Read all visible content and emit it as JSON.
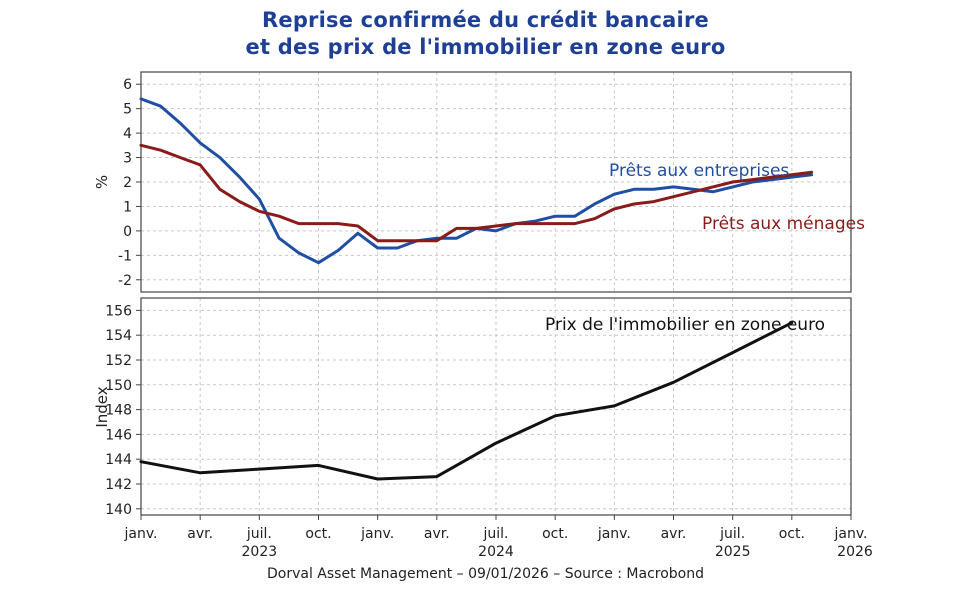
{
  "title_line1": "Reprise confirmée du crédit bancaire",
  "title_line2": "et des prix de l'immobilier en zone euro",
  "footer": "Dorval Asset Management – 09/01/2026 –   Source : Macrobond",
  "colors": {
    "entreprises": "#1f4fa3",
    "menages": "#8b1a1a",
    "immobilier": "#111111",
    "grid": "#c8c8c8",
    "frame": "#444444"
  },
  "chart_data": [
    {
      "type": "line",
      "ylabel": "%",
      "ylim": [
        -2.5,
        6.5
      ],
      "yticks": [
        -2,
        -1,
        0,
        1,
        2,
        3,
        4,
        5,
        6
      ],
      "x_unit": "months since janv. 2023",
      "grid": true,
      "series": [
        {
          "name": "Prêts aux entreprises",
          "color": "#1f4fa3",
          "x": [
            0,
            1,
            2,
            3,
            4,
            5,
            6,
            7,
            8,
            9,
            10,
            11,
            12,
            13,
            14,
            15,
            16,
            17,
            18,
            19,
            20,
            21,
            22,
            23,
            24,
            25,
            26,
            27,
            28,
            29,
            30,
            31,
            32,
            33,
            34
          ],
          "values": [
            5.4,
            5.1,
            4.4,
            3.6,
            3.0,
            2.2,
            1.3,
            -0.3,
            -0.9,
            -1.3,
            -0.8,
            -0.1,
            -0.7,
            -0.7,
            -0.4,
            -0.3,
            -0.3,
            0.1,
            0.0,
            0.3,
            0.4,
            0.6,
            0.6,
            1.1,
            1.5,
            1.7,
            1.7,
            1.8,
            1.7,
            1.6,
            1.8,
            2.0,
            2.1,
            2.2,
            2.3
          ]
        },
        {
          "name": "Prêts aux ménages",
          "color": "#8b1a1a",
          "x": [
            0,
            1,
            2,
            3,
            4,
            5,
            6,
            7,
            8,
            9,
            10,
            11,
            12,
            13,
            14,
            15,
            16,
            17,
            18,
            19,
            20,
            21,
            22,
            23,
            24,
            25,
            26,
            27,
            28,
            29,
            30,
            31,
            32,
            33,
            34
          ],
          "values": [
            3.5,
            3.3,
            3.0,
            2.7,
            1.7,
            1.2,
            0.8,
            0.6,
            0.3,
            0.3,
            0.3,
            0.2,
            -0.4,
            -0.4,
            -0.4,
            -0.4,
            0.1,
            0.1,
            0.2,
            0.3,
            0.3,
            0.3,
            0.3,
            0.5,
            0.9,
            1.1,
            1.2,
            1.4,
            1.6,
            1.8,
            2.0,
            2.1,
            2.2,
            2.3,
            2.4
          ]
        }
      ],
      "annotations": [
        "Prêts aux entreprises",
        "Prêts aux ménages"
      ]
    },
    {
      "type": "line",
      "ylabel": "Index",
      "ylim": [
        139.5,
        157
      ],
      "yticks": [
        140,
        142,
        144,
        146,
        148,
        150,
        152,
        154,
        156
      ],
      "x_unit": "months since janv. 2023",
      "grid": true,
      "series": [
        {
          "name": "Prix de l'immobilier en zone euro",
          "color": "#111111",
          "x": [
            0,
            3,
            6,
            9,
            12,
            15,
            18,
            21,
            24,
            27,
            30,
            33
          ],
          "values": [
            143.8,
            142.9,
            143.2,
            143.5,
            142.4,
            142.6,
            145.3,
            147.5,
            148.3,
            150.2,
            152.6,
            155.0
          ]
        }
      ],
      "annotations": [
        "Prix de l'immobilier en zone euro"
      ]
    }
  ],
  "xaxis": {
    "month_ticks": [
      "janv.",
      "avr.",
      "juil.",
      "oct.",
      "janv.",
      "avr.",
      "juil.",
      "oct.",
      "janv.",
      "avr.",
      "juil.",
      "oct.",
      "janv."
    ],
    "year_labels": [
      "2023",
      "2024",
      "2025",
      "2026"
    ],
    "xlim": [
      0,
      36
    ]
  }
}
